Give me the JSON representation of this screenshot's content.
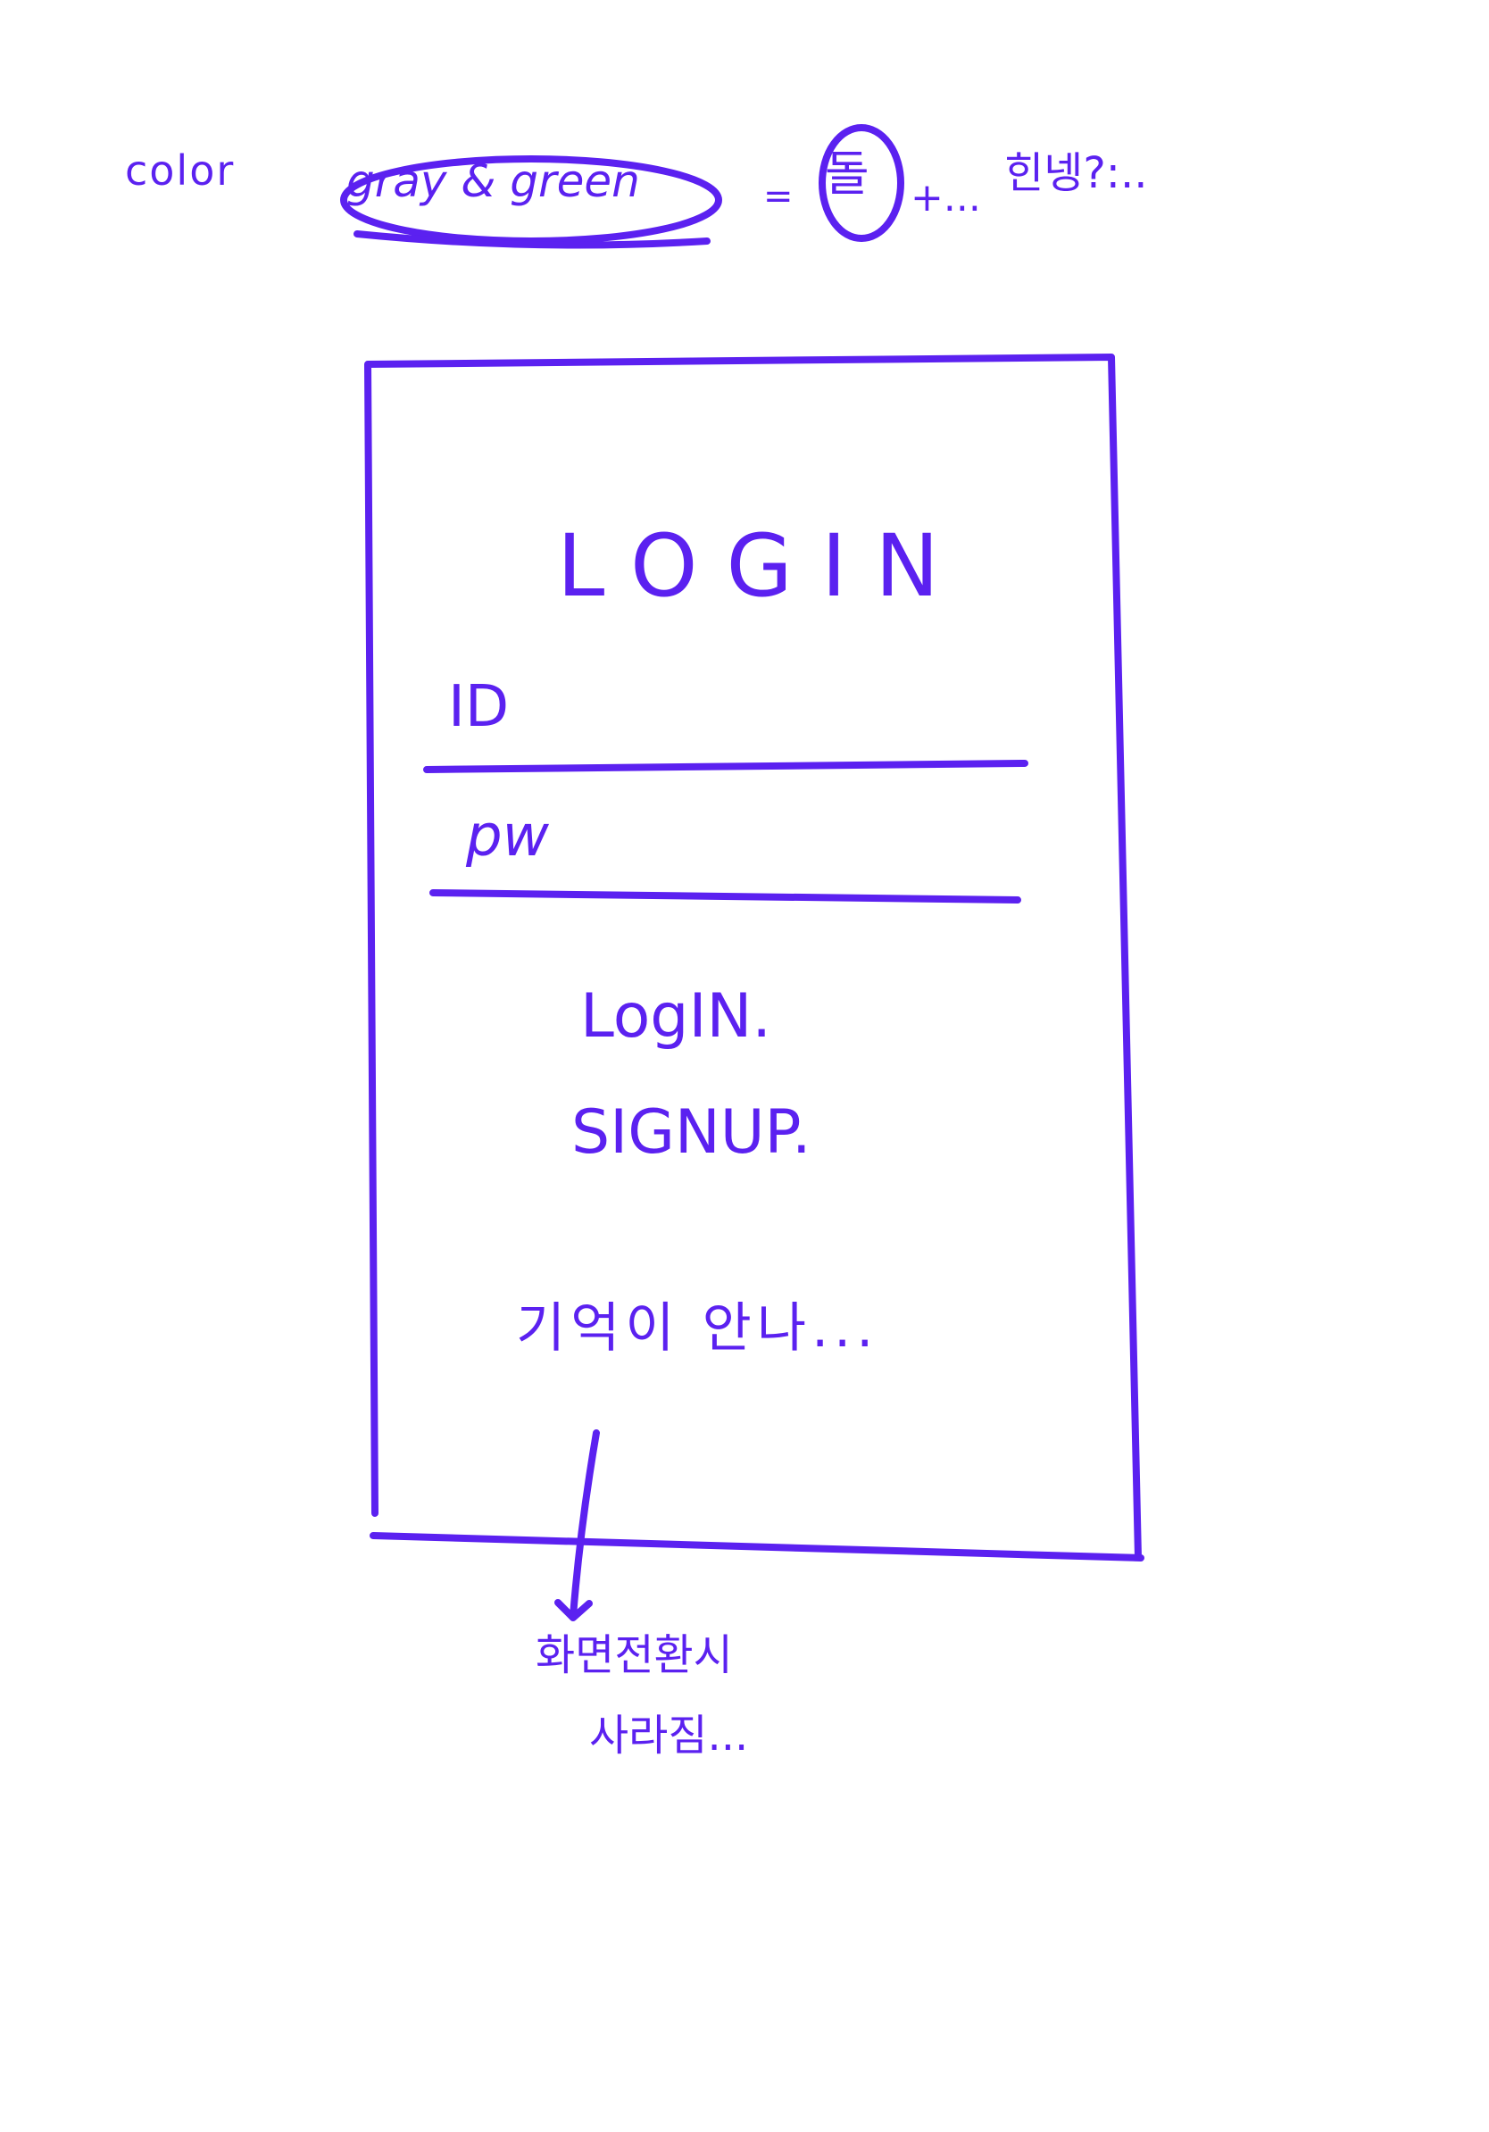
{
  "note": {
    "color_label": "color",
    "palette": "gray & green",
    "separator": "=",
    "circled_char": "돌",
    "plus": "+...",
    "tail": "힌넹?:.."
  },
  "wireframe": {
    "title": "LOGIN",
    "id_label": "ID",
    "pw_label": "pw",
    "login_button": "LogIN.",
    "signup_button": "SIGNUP.",
    "forgot_link": "기억이 안나...",
    "annotation_line1": "화면전환시",
    "annotation_line2": "사라짐..."
  },
  "colors": {
    "ink": "#5b21f0",
    "paper": "#ffffff"
  }
}
